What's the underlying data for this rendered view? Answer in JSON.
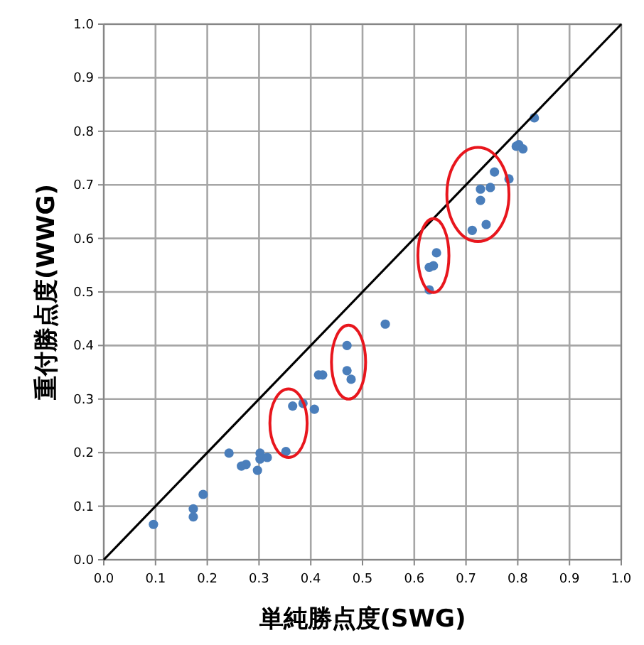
{
  "chart_data": {
    "type": "scatter",
    "xlabel": "単純勝点度(SWG)",
    "ylabel": "重付勝点度(WWG)",
    "xlim": [
      0,
      1
    ],
    "ylim": [
      0,
      1
    ],
    "xticks": [
      {
        "value": 0,
        "label": "0.0"
      },
      {
        "value": 0.1,
        "label": "0.1"
      },
      {
        "value": 0.2,
        "label": "0.2"
      },
      {
        "value": 0.3,
        "label": "0.3"
      },
      {
        "value": 0.4,
        "label": "0.4"
      },
      {
        "value": 0.5,
        "label": "0.5"
      },
      {
        "value": 0.6,
        "label": "0.6"
      },
      {
        "value": 0.7,
        "label": "0.7"
      },
      {
        "value": 0.8,
        "label": "0.8"
      },
      {
        "value": 0.9,
        "label": "0.9"
      },
      {
        "value": 1,
        "label": "1.0"
      }
    ],
    "yticks": [
      {
        "value": 0,
        "label": "0.0"
      },
      {
        "value": 0.1,
        "label": "0.1"
      },
      {
        "value": 0.2,
        "label": "0.2"
      },
      {
        "value": 0.3,
        "label": "0.3"
      },
      {
        "value": 0.4,
        "label": "0.4"
      },
      {
        "value": 0.5,
        "label": "0.5"
      },
      {
        "value": 0.6,
        "label": "0.6"
      },
      {
        "value": 0.7,
        "label": "0.7"
      },
      {
        "value": 0.8,
        "label": "0.8"
      },
      {
        "value": 0.9,
        "label": "0.9"
      },
      {
        "value": 1,
        "label": "1.0"
      }
    ],
    "grid": true,
    "series": [
      {
        "marker": "circle",
        "color": "#4a7ebb",
        "x": [
          0.096,
          0.173,
          0.173,
          0.192,
          0.242,
          0.266,
          0.275,
          0.297,
          0.302,
          0.302,
          0.316,
          0.352,
          0.365,
          0.385,
          0.407,
          0.415,
          0.423,
          0.47,
          0.47,
          0.478,
          0.544,
          0.629,
          0.629,
          0.637,
          0.643,
          0.712,
          0.739,
          0.728,
          0.728,
          0.747,
          0.755,
          0.783,
          0.797,
          0.802,
          0.81,
          0.832
        ],
        "values": [
          0.066,
          0.095,
          0.08,
          0.122,
          0.199,
          0.175,
          0.178,
          0.167,
          0.199,
          0.188,
          0.191,
          0.202,
          0.287,
          0.292,
          0.281,
          0.345,
          0.345,
          0.4,
          0.353,
          0.337,
          0.44,
          0.504,
          0.546,
          0.549,
          0.573,
          0.615,
          0.626,
          0.671,
          0.692,
          0.695,
          0.724,
          0.711,
          0.772,
          0.775,
          0.767,
          0.825
        ]
      },
      {
        "type": "line",
        "color": "#000000",
        "x": [
          0,
          1
        ],
        "values": [
          0,
          1
        ]
      }
    ]
  }
}
